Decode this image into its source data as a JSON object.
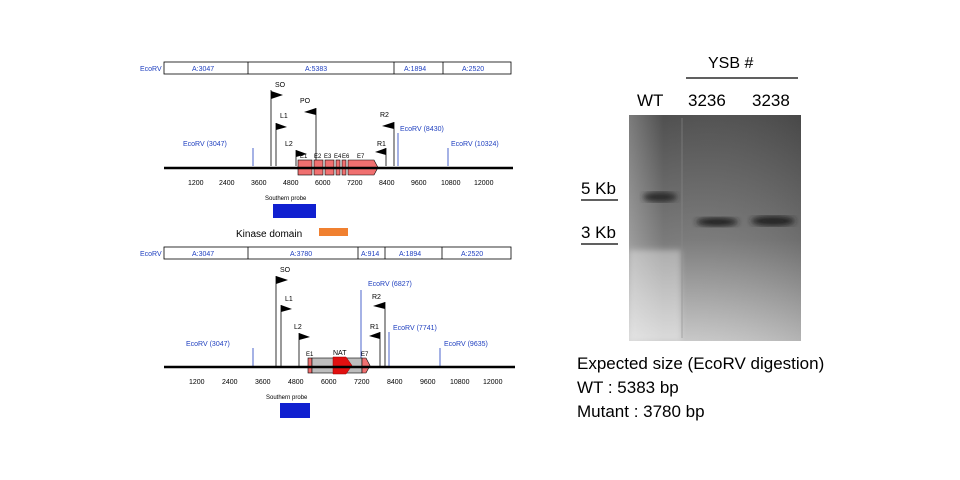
{
  "top_map": {
    "enzyme_label": "EcoRV",
    "fragments": [
      "A:3047",
      "A:5383",
      "A:1894",
      "A:2520"
    ],
    "site_labels": [
      "EcoRV (3047)",
      "EcoRV (8430)",
      "EcoRV (10324)"
    ],
    "primers": [
      "SO",
      "PO",
      "L1",
      "L2",
      "R2",
      "R1"
    ],
    "exons": [
      "E1",
      "E2",
      "E3",
      "E4",
      "E6",
      "E7"
    ],
    "ticks": [
      "1200",
      "2400",
      "3600",
      "4800",
      "6000",
      "7200",
      "8400",
      "9600",
      "10800",
      "12000"
    ],
    "probe_label": "Southern probe",
    "probe_color": "#1020d0",
    "exon_color": "#f07070",
    "kinase_label": "Kinase domain",
    "kinase_color": "#f08030"
  },
  "bottom_map": {
    "enzyme_label": "EcoRV",
    "fragments": [
      "A:3047",
      "A:3780",
      "A:914",
      "A:1894",
      "A:2520"
    ],
    "site_labels": [
      "EcoRV (6827)",
      "EcoRV (3047)",
      "EcoRV (7741)",
      "EcoRV (9635)"
    ],
    "primers": [
      "SO",
      "L1",
      "L2",
      "R2",
      "R1"
    ],
    "exons": [
      "E1",
      "E7"
    ],
    "marker_label": "NAT",
    "marker_color": "#e01010",
    "ticks": [
      "1200",
      "2400",
      "3600",
      "4800",
      "6000",
      "7200",
      "8400",
      "9600",
      "10800",
      "12000"
    ],
    "probe_label": "Southern probe",
    "probe_color": "#1020d0"
  },
  "gel": {
    "header": "YSB #",
    "lanes": [
      "WT",
      "3236",
      "3238"
    ],
    "size_markers": [
      "5 Kb",
      "3 Kb"
    ]
  },
  "expected": {
    "title": "Expected size (EcoRV digestion)",
    "wt": "WT : 5383 bp",
    "mutant": "Mutant : 3780 bp"
  }
}
